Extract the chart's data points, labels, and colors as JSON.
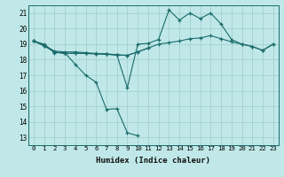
{
  "xlabel": "Humidex (Indice chaleur)",
  "bg_color": "#c0e8e8",
  "grid_color": "#a0cccc",
  "line_color": "#1a6b6b",
  "xlim": [
    -0.5,
    23.5
  ],
  "ylim": [
    12.5,
    21.5
  ],
  "xticks": [
    0,
    1,
    2,
    3,
    4,
    5,
    6,
    7,
    8,
    9,
    10,
    11,
    12,
    13,
    14,
    15,
    16,
    17,
    18,
    19,
    20,
    21,
    22,
    23
  ],
  "yticks": [
    13,
    14,
    15,
    16,
    17,
    18,
    19,
    20,
    21
  ],
  "line1_y": [
    19.2,
    19.0,
    18.45,
    18.45,
    17.7,
    17.0,
    16.55,
    14.8,
    14.85,
    13.3,
    13.1,
    null,
    null,
    null,
    null,
    null,
    null,
    null,
    null,
    null,
    null,
    null,
    null,
    null
  ],
  "line2_y": [
    19.2,
    18.95,
    18.55,
    18.5,
    18.5,
    18.45,
    18.4,
    18.38,
    18.32,
    18.28,
    18.5,
    18.75,
    null,
    null,
    null,
    null,
    null,
    null,
    null,
    null,
    null,
    null,
    null,
    null
  ],
  "line3_y": [
    19.2,
    18.9,
    18.5,
    18.4,
    18.42,
    18.4,
    18.38,
    18.35,
    18.3,
    16.2,
    19.0,
    19.05,
    19.3,
    21.2,
    20.55,
    21.0,
    20.65,
    21.0,
    20.3,
    19.3,
    19.0,
    18.85,
    18.6,
    19.0
  ],
  "line4_y": [
    19.2,
    18.9,
    18.5,
    18.4,
    18.42,
    18.4,
    18.38,
    18.35,
    18.3,
    18.28,
    18.5,
    18.75,
    19.0,
    19.1,
    19.2,
    19.35,
    19.4,
    19.55,
    19.35,
    19.15,
    19.0,
    18.85,
    18.6,
    19.0
  ]
}
